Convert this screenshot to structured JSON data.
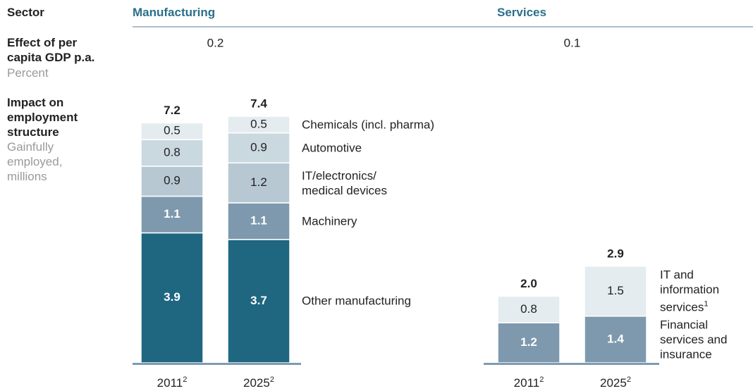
{
  "sector_label": "Sector",
  "effect_label": "Effect of per\ncapita GDP p.a.",
  "effect_unit": "Percent",
  "impact_label": "Impact on\nemployment\nstructure",
  "impact_unit": "Gainfully\nemployed,\nmillions",
  "chart_data": [
    {
      "type": "stacked_bar",
      "title": "Manufacturing",
      "effect": 0.2,
      "categories": [
        "2011",
        "2025"
      ],
      "category_notes": [
        "2",
        "2"
      ],
      "totals": [
        7.2,
        7.4
      ],
      "series": [
        {
          "name": "Other manufacturing",
          "color": "#1f6680",
          "label_color": "#ffffff",
          "values": [
            3.9,
            3.7
          ]
        },
        {
          "name": "Machinery",
          "color": "#7e99ad",
          "label_color": "#ffffff",
          "values": [
            1.1,
            1.1
          ]
        },
        {
          "name": "IT/electronics/\nmedical devices",
          "color": "#b7c8d3",
          "label_color": "#222222",
          "values": [
            0.9,
            1.2
          ]
        },
        {
          "name": "Automotive",
          "color": "#cad8e0",
          "label_color": "#222222",
          "values": [
            0.8,
            0.9
          ]
        },
        {
          "name": "Chemicals (incl. pharma)",
          "color": "#e4ecf0",
          "label_color": "#222222",
          "values": [
            0.5,
            0.5
          ]
        }
      ]
    },
    {
      "type": "stacked_bar",
      "title": "Services",
      "effect": 0.1,
      "categories": [
        "2011",
        "2025"
      ],
      "category_notes": [
        "2",
        "2"
      ],
      "totals": [
        2.0,
        2.9
      ],
      "total_labels": [
        "2.0",
        "2.9"
      ],
      "series": [
        {
          "name": "Financial\nservices and\ninsurance",
          "color": "#7e99ad",
          "label_color": "#ffffff",
          "values": [
            1.2,
            1.4
          ]
        },
        {
          "name": "IT and\ninformation\nservices",
          "note": "1",
          "color": "#e4ecf0",
          "label_color": "#222222",
          "values": [
            0.8,
            1.5
          ]
        }
      ]
    }
  ]
}
